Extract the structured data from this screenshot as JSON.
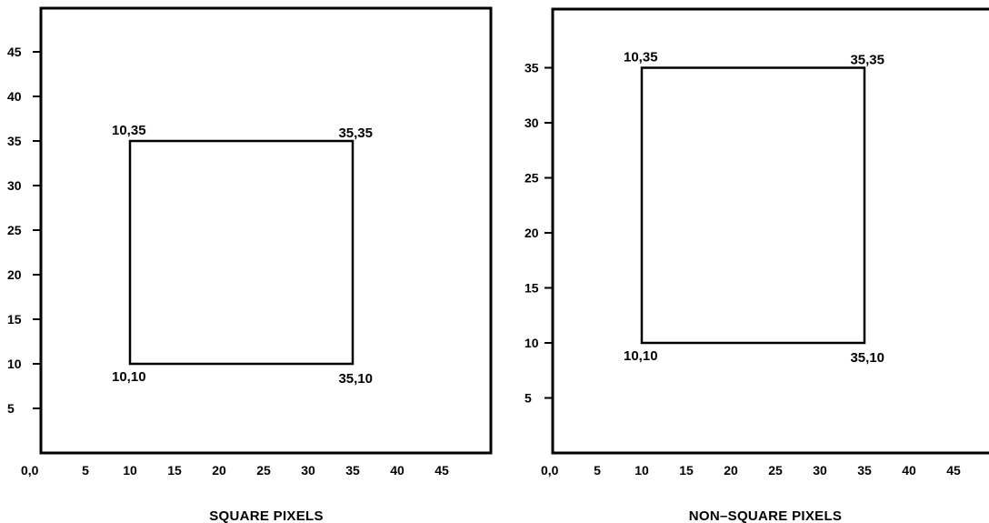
{
  "panels": [
    {
      "key": "left",
      "caption": "SQUARE PIXELS",
      "origin_label": "0,0",
      "x_ticks": [
        5,
        10,
        15,
        20,
        25,
        30,
        35,
        40,
        45
      ],
      "y_ticks": [
        5,
        10,
        15,
        20,
        25,
        30,
        35,
        40,
        45
      ],
      "square": {
        "x0": 10,
        "y0": 10,
        "x1": 35,
        "y1": 35
      },
      "corner_labels": {
        "top_left": "10,35",
        "top_right": "35,35",
        "bottom_left": "10,10",
        "bottom_right": "35,10"
      }
    },
    {
      "key": "right",
      "caption": "NON–SQUARE PIXELS",
      "origin_label": "0,0",
      "x_ticks": [
        5,
        10,
        15,
        20,
        25,
        30,
        35,
        40,
        45
      ],
      "y_ticks": [
        5,
        10,
        15,
        20,
        25,
        30,
        35
      ],
      "square": {
        "x0": 10,
        "y0": 10,
        "x1": 35,
        "y1": 35
      },
      "corner_labels": {
        "top_left": "10,35",
        "top_right": "35,35",
        "bottom_left": "10,10",
        "bottom_right": "35,10"
      }
    }
  ]
}
